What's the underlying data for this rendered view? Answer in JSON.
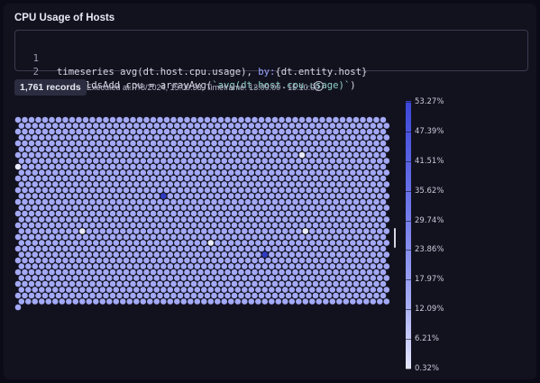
{
  "panel": {
    "title": "CPU Usage of Hosts"
  },
  "query": {
    "lines": [
      {
        "number": "1",
        "text_a": "timeseries avg(dt.host.cpu.usage), ",
        "kw": "by:",
        "text_b": "{dt.entity.host}"
      },
      {
        "number": "2",
        "text_a": "| fieldsAdd cpu = arrayAvg(",
        "str": "`avg(dt.host.cpu.usage)`",
        "text_b": ")"
      }
    ]
  },
  "result": {
    "records": "1,761 records",
    "executed": "Executed at: 7/8/2024, 15:09:33, Timeframe: 13:09:00 - 15:10:00"
  },
  "legend": {
    "labels": [
      "53.27%",
      "47.39%",
      "41.51%",
      "35.62%",
      "29.74%",
      "23.86%",
      "17.97%",
      "12.09%",
      "6.21%",
      "0.32%"
    ],
    "colors": {
      "high": "#3b46d9",
      "mid": "#8e95ef",
      "low": "#e6e8fd"
    }
  },
  "heatmap": {
    "cells": 1761,
    "base_color": "#a3a9f5",
    "highlight_light_color": "#e9eafc",
    "highlight_dark_color": "#2f3cc4"
  },
  "icons": {
    "info": "info-icon"
  }
}
